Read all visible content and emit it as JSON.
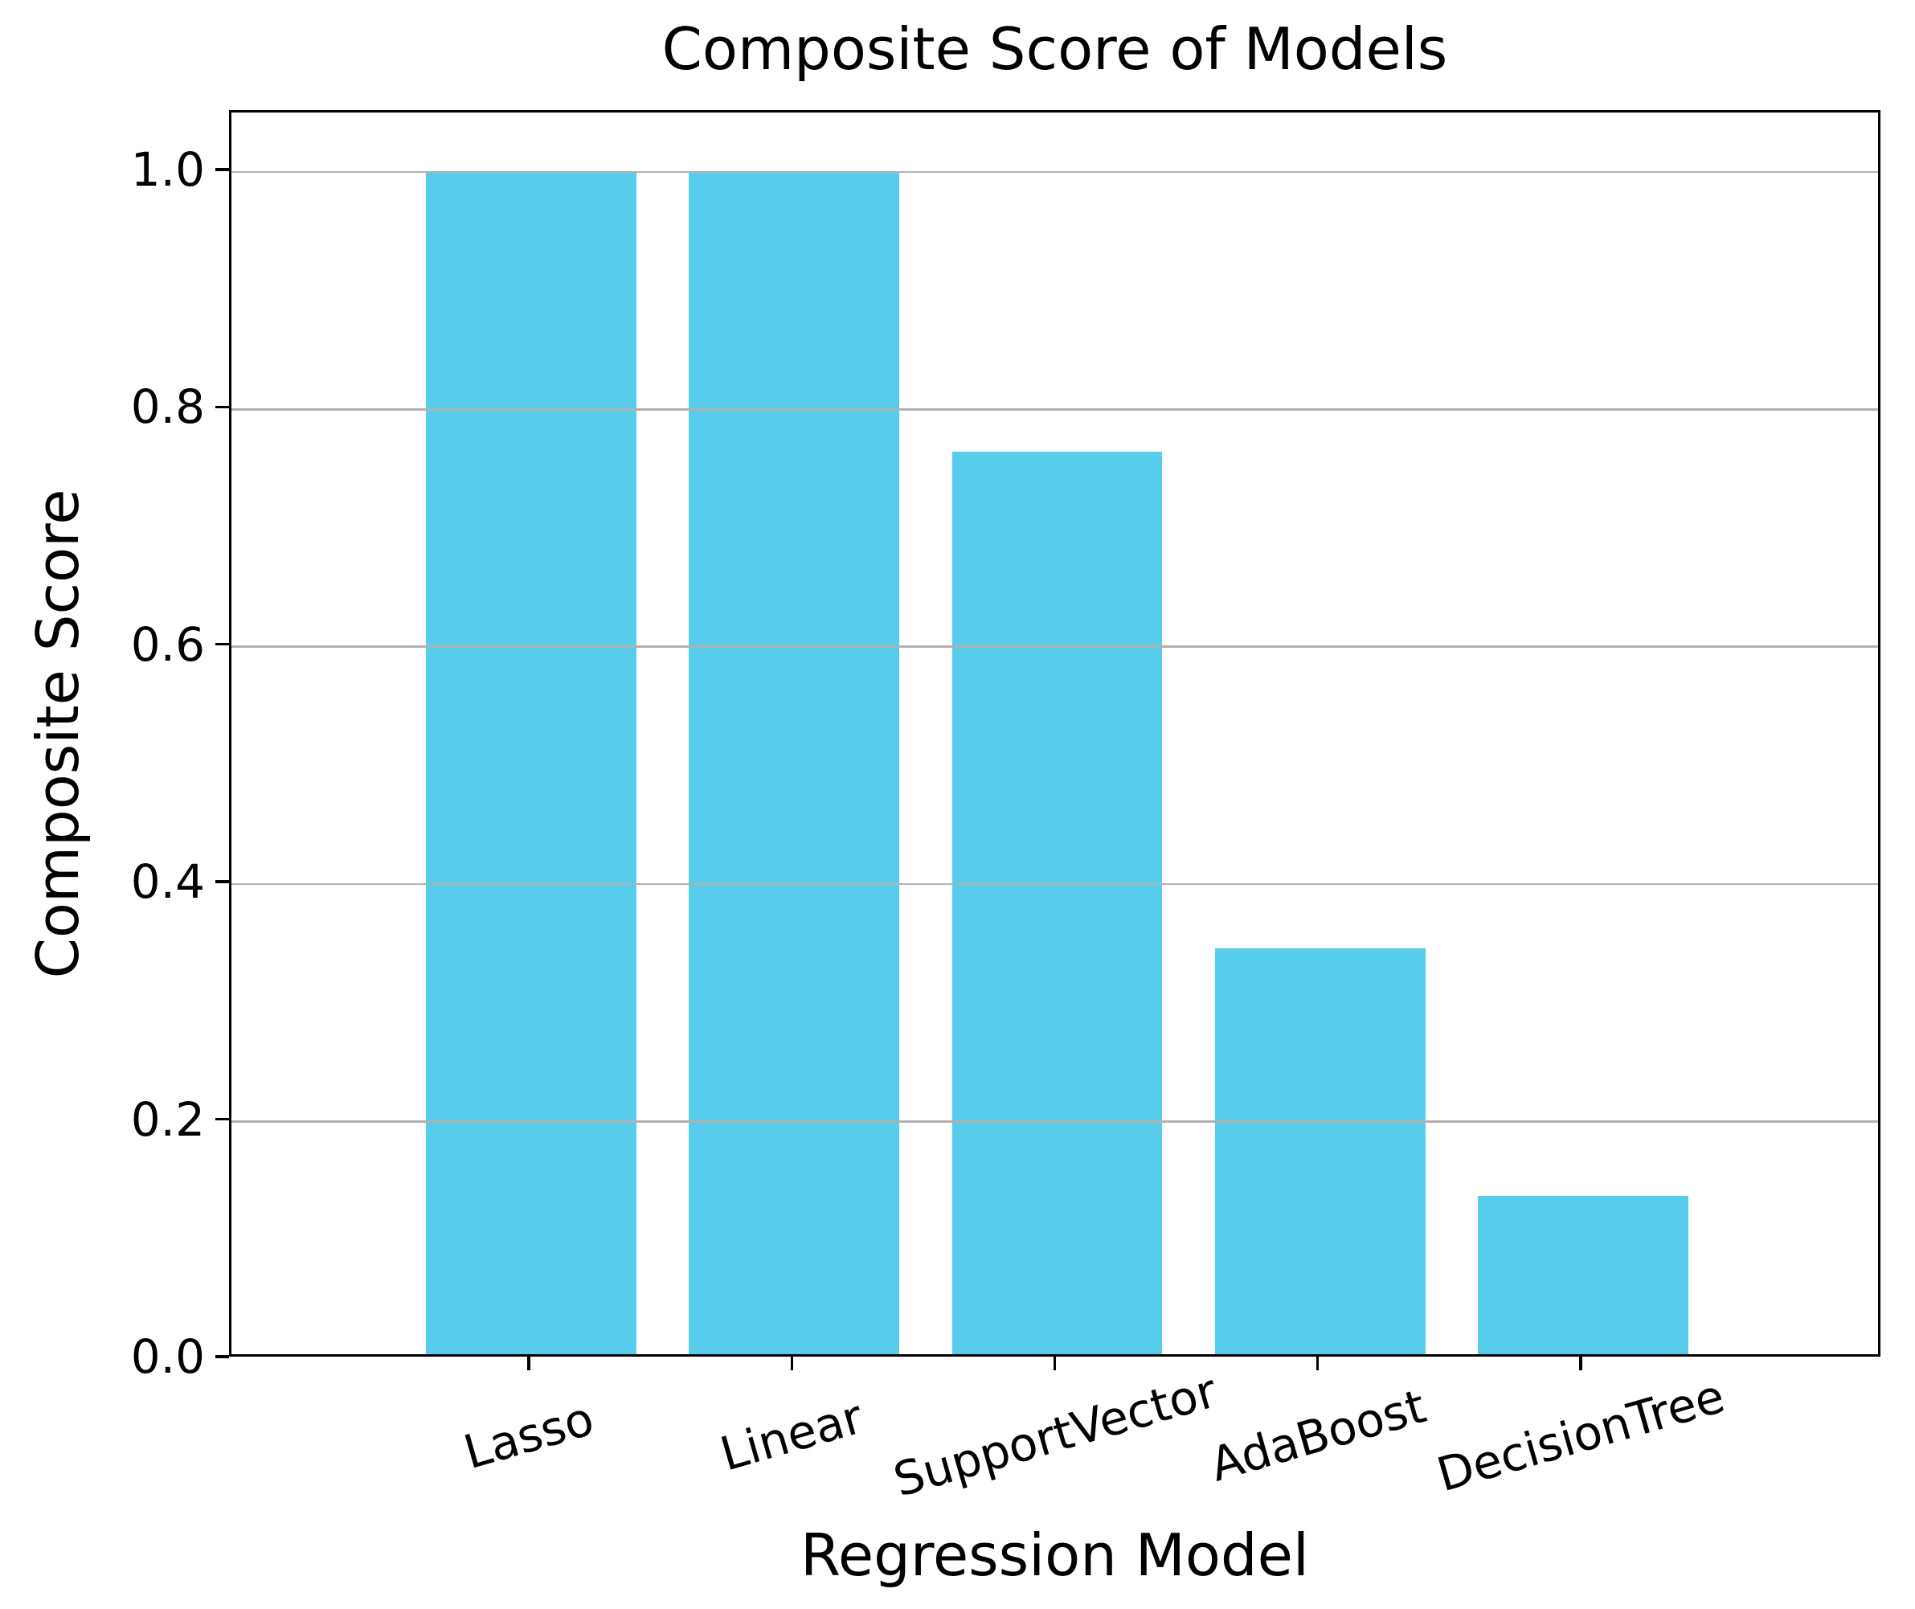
{
  "chart_data": {
    "type": "bar",
    "title": "Composite Score of Models",
    "xlabel": "Regression Model",
    "ylabel": "Composite Score",
    "categories": [
      "Lasso",
      "Linear",
      "SupportVector",
      "AdaBoost",
      "DecisionTree"
    ],
    "values": [
      1.0,
      1.0,
      0.763,
      0.343,
      0.134
    ],
    "ylim": [
      0,
      1.05
    ],
    "ytick_labels": [
      "0.0",
      "0.2",
      "0.4",
      "0.6",
      "0.8",
      "1.0"
    ],
    "ytick_values": [
      0.0,
      0.2,
      0.4,
      0.6,
      0.8,
      1.0
    ],
    "gridline_values": [
      0.2,
      0.4,
      0.6,
      0.8,
      1.0
    ],
    "grid": "horizontal-on-top-of-bars",
    "legend": "none",
    "xtick_rotation_deg": 16,
    "bar_width_fraction": 0.8,
    "colors": {
      "bar": "#57CDEB",
      "grid": "#b0b0b0",
      "spine": "#000000",
      "text": "#000000",
      "background": "#ffffff"
    }
  }
}
